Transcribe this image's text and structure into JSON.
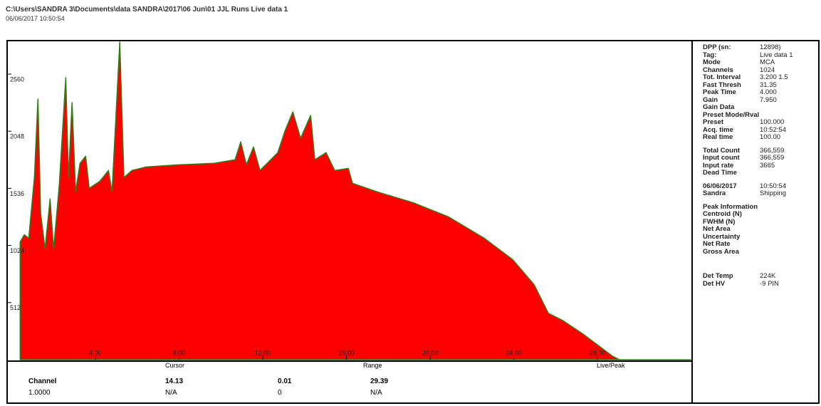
{
  "header": {
    "path": "C:\\Users\\SANDRA 3\\Documents\\data SANDRA\\2017\\06 Jun\\01 JJL Runs   Live data 1",
    "timestamp": "06/06/2017 10:50:54"
  },
  "chart_data": {
    "type": "area",
    "x": [
      0.41,
      0.61,
      0.82,
      1.09,
      1.26,
      1.39,
      1.6,
      1.84,
      2.01,
      2.28,
      2.59,
      2.72,
      2.89,
      3.06,
      3.27,
      3.54,
      3.71,
      4.22,
      4.63,
      4.8,
      5.17,
      5.37,
      5.75,
      6.43,
      7.96,
      9.66,
      10.68,
      10.95,
      11.22,
      11.56,
      11.87,
      12.72,
      13.06,
      13.44,
      13.81,
      14.29,
      14.49,
      15.03,
      15.44,
      16.09,
      16.29,
      17.48,
      19.18,
      20.88,
      22.59,
      23.95,
      24.97,
      25.65,
      26.33,
      26.84,
      27.35,
      28.03,
      28.71,
      29.05,
      32.45
    ],
    "values": [
      1056,
      1120,
      1088,
      1632,
      2336,
      1312,
      992,
      1440,
      992,
      1568,
      2528,
      1632,
      2304,
      1504,
      1760,
      1824,
      1536,
      1600,
      1696,
      1504,
      2848,
      1632,
      1696,
      1728,
      1747,
      1760,
      1792,
      1952,
      1747,
      1907,
      1696,
      1856,
      2048,
      2221,
      1984,
      2189,
      1792,
      1856,
      1696,
      1715,
      1581,
      1504,
      1408,
      1280,
      1088,
      896,
      672,
      416,
      352,
      288,
      224,
      128,
      32,
      0,
      0
    ],
    "color": "#ff0000",
    "line_color": "#2e7d1a",
    "xlim": [
      0.4,
      32.45
    ],
    "xticks": [
      {
        "value": 4,
        "label": "4.00"
      },
      {
        "value": 8,
        "label": "8.00"
      },
      {
        "value": 12,
        "label": "12.00"
      },
      {
        "value": 16,
        "label": "16.00"
      },
      {
        "value": 20,
        "label": "20.00"
      },
      {
        "value": 24,
        "label": "24.00"
      },
      {
        "value": 28,
        "label": "28.00"
      }
    ],
    "ylim": [
      0,
      2860
    ],
    "yticks": [
      512,
      1024,
      1536,
      2048,
      2560
    ]
  },
  "info_panel": {
    "rows": [
      [
        "DPP (sn:",
        "12898)"
      ],
      [
        "Tag:",
        "Live data 1"
      ],
      [
        "Mode",
        "MCA"
      ],
      [
        "Channels",
        "1024"
      ],
      [
        "Tot. Interval",
        "3.200 1.5"
      ],
      [
        "Fast Thresh",
        "31.35"
      ],
      [
        "Peak Time",
        "4.000"
      ],
      [
        "Gain",
        "7.950"
      ],
      [
        "Gain Data",
        ""
      ],
      [
        "Preset Mode/Rval",
        ""
      ],
      [
        "Preset",
        "100.000"
      ],
      [
        "Acq. time",
        "10:52:54"
      ],
      [
        "Real time",
        "100.00"
      ],
      [
        "Total Count",
        "366,559"
      ],
      [
        "Input count",
        "366,559"
      ],
      [
        "Input rate",
        "3665"
      ],
      [
        "Dead Time",
        ""
      ],
      [
        "06/06/2017",
        "10:50:54"
      ],
      [
        "Sandra",
        "Shipping"
      ],
      [
        "Peak Information",
        ""
      ],
      [
        "Centroid (N)",
        ""
      ],
      [
        "FWHM (N)",
        ""
      ],
      [
        "Net Area",
        ""
      ],
      [
        "Uncertainty",
        ""
      ],
      [
        "Net Rate",
        ""
      ],
      [
        "Gross Area",
        ""
      ],
      [
        "Det Temp",
        "224K"
      ],
      [
        "Det HV",
        "-9 PIN"
      ]
    ]
  },
  "status_bar": {
    "cursor": "Cursor",
    "range": "Range",
    "roi": "Live/Peak",
    "row1": [
      "Channel",
      "14.13",
      "0.01",
      "29.39"
    ],
    "row2": [
      "1.0000",
      "N/A",
      "0",
      "N/A"
    ]
  }
}
